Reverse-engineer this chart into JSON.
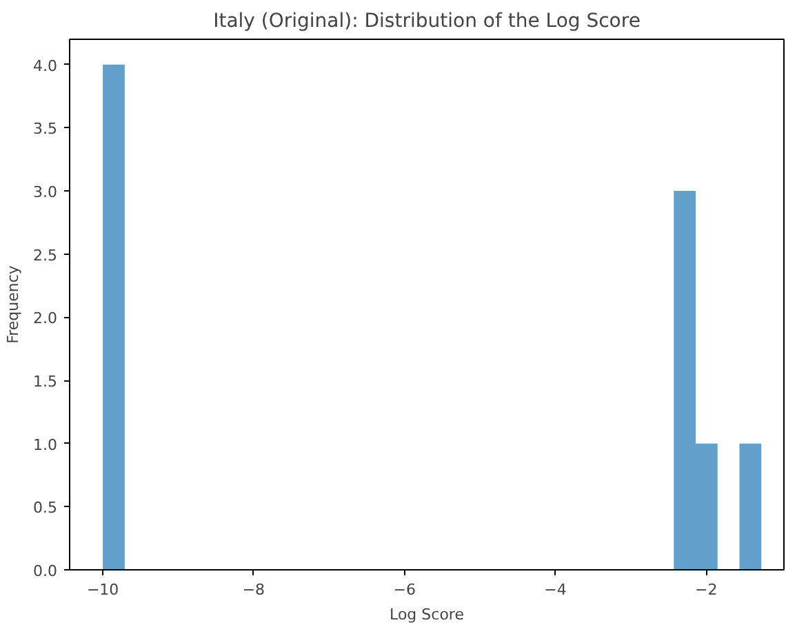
{
  "chart_data": {
    "type": "histogram",
    "title": "Italy (Original): Distribution of the Log Score",
    "xlabel": "Log Score",
    "ylabel": "Frequency",
    "bins": [
      -10,
      -9.71,
      -2.43,
      -2.14,
      -1.85,
      -1.56,
      -1.27
    ],
    "values": [
      4,
      0,
      3,
      1,
      0,
      1
    ],
    "color": "#62a0cb",
    "xlim": [
      -10.44,
      -0.97
    ],
    "xticks": [
      {
        "value": -10,
        "label": "−10"
      },
      {
        "value": -8,
        "label": "−8"
      },
      {
        "value": -6,
        "label": "−6"
      },
      {
        "value": -4,
        "label": "−4"
      },
      {
        "value": -2,
        "label": "−2"
      }
    ],
    "ylim": [
      0,
      4.2
    ],
    "yticks": [
      {
        "value": 0,
        "label": "0.0"
      },
      {
        "value": 0.5,
        "label": "0.5"
      },
      {
        "value": 1,
        "label": "1.0"
      },
      {
        "value": 1.5,
        "label": "1.5"
      },
      {
        "value": 2,
        "label": "2.0"
      },
      {
        "value": 2.5,
        "label": "2.5"
      },
      {
        "value": 3,
        "label": "3.0"
      },
      {
        "value": 3.5,
        "label": "3.5"
      },
      {
        "value": 4,
        "label": "4.0"
      }
    ],
    "grid": false
  }
}
